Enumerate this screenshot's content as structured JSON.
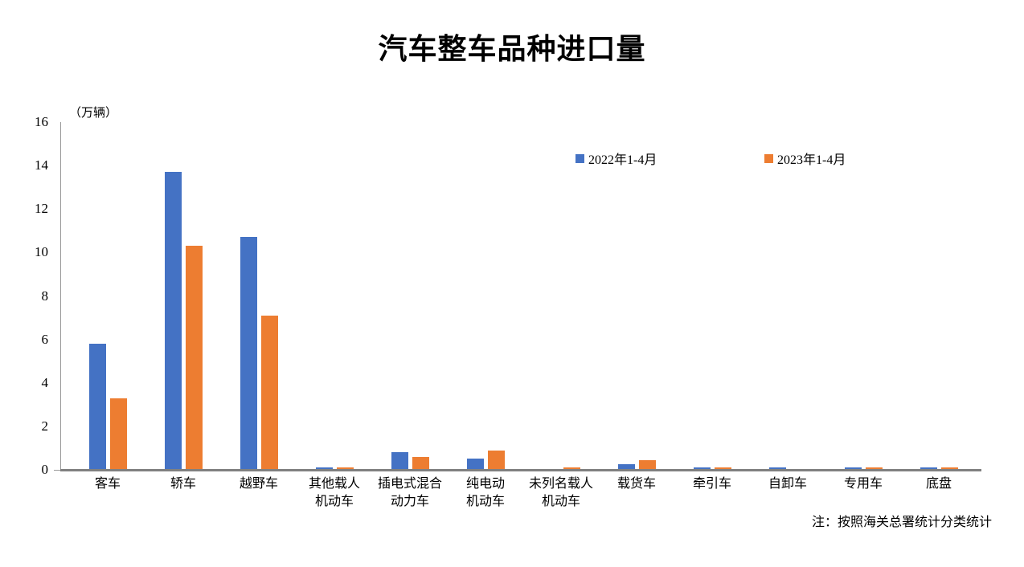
{
  "chart": {
    "title": "汽车整车品种进口量",
    "unit_label": "（万辆）",
    "note": "注：按照海关总署统计分类统计"
  },
  "colors": {
    "series_2022": "#4472C4",
    "series_2023": "#ED7D31",
    "axis": "#808080"
  },
  "chart_data": {
    "type": "bar",
    "title": "汽车整车品种进口量",
    "ylabel": "（万辆）",
    "xlabel": "",
    "ylim": [
      0,
      16
    ],
    "yticks": [
      0,
      2,
      4,
      6,
      8,
      10,
      12,
      14,
      16
    ],
    "grid": false,
    "legend_position": "top-inside",
    "categories": [
      "客车",
      "轿车",
      "越野车",
      "其他载人\n机动车",
      "插电式混合\n动力车",
      "纯电动\n机动车",
      "未列名载人\n机动车",
      "载货车",
      "牵引车",
      "自卸车",
      "专用车",
      "底盘"
    ],
    "series": [
      {
        "name": "2022年1-4月",
        "color": "#4472C4",
        "values": [
          5.8,
          13.7,
          10.7,
          0.1,
          0.8,
          0.5,
          0,
          0.25,
          0.1,
          0.1,
          0.1,
          0.1
        ]
      },
      {
        "name": "2023年1-4月",
        "color": "#ED7D31",
        "values": [
          3.3,
          10.3,
          7.1,
          0.1,
          0.6,
          0.9,
          0.1,
          0.45,
          0.1,
          0,
          0.1,
          0.1
        ]
      }
    ],
    "footnote": "注：按照海关总署统计分类统计"
  }
}
